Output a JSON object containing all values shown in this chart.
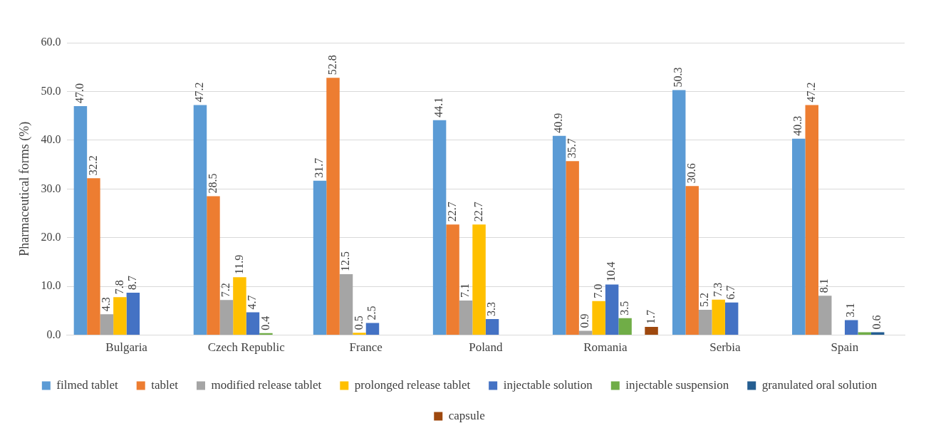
{
  "chart_data": {
    "type": "bar",
    "ylabel": "Pharmaceutical forms (%)",
    "categories": [
      "Bulgaria",
      "Czech Republic",
      "France",
      "Poland",
      "Romania",
      "Serbia",
      "Spain"
    ],
    "ylim": [
      0,
      60
    ],
    "yticks": [
      {
        "value": 0,
        "label": "0.0"
      },
      {
        "value": 10,
        "label": "10.0"
      },
      {
        "value": 20,
        "label": "20.0"
      },
      {
        "value": 30,
        "label": "30.0"
      },
      {
        "value": 40,
        "label": "40.0"
      },
      {
        "value": 50,
        "label": "50.0"
      },
      {
        "value": 60,
        "label": "60.0"
      }
    ],
    "grid": "y",
    "legend": "bottom",
    "series": [
      {
        "name": "filmed tablet",
        "color": "#5b9bd5",
        "values": [
          47.0,
          47.2,
          31.7,
          44.1,
          40.9,
          50.3,
          40.3
        ],
        "value_labels": [
          "47.0",
          "47.2",
          "31.7",
          "44.1",
          "40.9",
          "50.3",
          "40.3"
        ]
      },
      {
        "name": "tablet",
        "color": "#ed7d31",
        "values": [
          32.2,
          28.5,
          52.8,
          22.7,
          35.7,
          30.6,
          47.2
        ],
        "value_labels": [
          "32.2",
          "28.5",
          "52.8",
          "22.7",
          "35.7",
          "30.6",
          "47.2"
        ]
      },
      {
        "name": "modified release tablet",
        "color": "#a5a5a5",
        "values": [
          4.3,
          7.2,
          12.5,
          7.1,
          0.9,
          5.2,
          8.1
        ],
        "value_labels": [
          "4.3",
          "7.2",
          "12.5",
          "7.1",
          "0.9",
          "5.2",
          "8.1"
        ]
      },
      {
        "name": "prolonged release tablet",
        "color": "#ffc000",
        "values": [
          7.8,
          11.9,
          0.5,
          22.7,
          7.0,
          7.3,
          null
        ],
        "value_labels": [
          "7.8",
          "11.9",
          "0.5",
          "22.7",
          "7.0",
          "7.3",
          null
        ]
      },
      {
        "name": "injectable solution",
        "color": "#4472c4",
        "values": [
          8.7,
          4.7,
          2.5,
          3.3,
          10.4,
          6.7,
          3.1
        ],
        "value_labels": [
          "8.7",
          "4.7",
          "2.5",
          "3.3",
          "10.4",
          "6.7",
          "3.1"
        ]
      },
      {
        "name": "injectable suspension",
        "color": "#70ad47",
        "values": [
          null,
          0.4,
          null,
          null,
          3.5,
          null,
          0.6
        ],
        "value_labels": [
          null,
          "0.4",
          null,
          null,
          "3.5",
          null,
          null
        ]
      },
      {
        "name": "granulated oral solution",
        "color": "#255e91",
        "values": [
          null,
          null,
          null,
          null,
          null,
          null,
          0.6
        ],
        "value_labels": [
          null,
          null,
          null,
          null,
          null,
          null,
          "0.6"
        ]
      },
      {
        "name": "capsule",
        "color": "#9e480e",
        "values": [
          null,
          null,
          null,
          null,
          1.7,
          null,
          null
        ],
        "value_labels": [
          null,
          null,
          null,
          null,
          "1.7",
          null,
          null
        ]
      }
    ]
  }
}
